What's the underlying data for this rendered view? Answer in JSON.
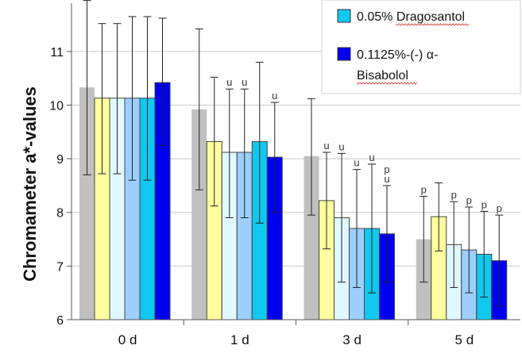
{
  "chart_data": {
    "type": "bar",
    "ylabel": "Chromameter a*-values",
    "ylim": [
      6,
      11.9
    ],
    "yticks": [
      "6",
      "7",
      "8",
      "9",
      "10",
      "11"
    ],
    "categories": [
      "0 d",
      "1 d",
      "3 d",
      "5 d"
    ],
    "series": [
      {
        "color": "#c0c0c0",
        "values": [
          10.33,
          9.92,
          9.05,
          7.5
        ],
        "err_upper": [
          11.95,
          11.42,
          10.12,
          8.3
        ],
        "err_lower": [
          8.7,
          8.42,
          7.95,
          6.7
        ],
        "annotations": [
          "",
          "",
          "",
          "p"
        ]
      },
      {
        "color": "#ffffa0",
        "values": [
          10.13,
          9.32,
          8.22,
          7.92
        ],
        "err_upper": [
          11.52,
          10.52,
          9.12,
          8.55
        ],
        "err_lower": [
          8.72,
          8.12,
          7.32,
          7.28
        ],
        "annotations": [
          "",
          "",
          "u",
          ""
        ]
      },
      {
        "color": "#e0f8ff",
        "values": [
          10.13,
          9.12,
          7.9,
          7.4
        ],
        "err_upper": [
          11.52,
          10.3,
          9.1,
          8.2
        ],
        "err_lower": [
          8.72,
          7.9,
          6.7,
          6.6
        ],
        "annotations": [
          "",
          "u",
          "u",
          "p"
        ]
      },
      {
        "color": "#9ccfff",
        "values": [
          10.13,
          9.12,
          7.7,
          7.3
        ],
        "err_upper": [
          11.65,
          10.3,
          8.8,
          8.1
        ],
        "err_lower": [
          8.6,
          7.9,
          6.6,
          6.5
        ],
        "annotations": [
          "",
          "u",
          "u",
          "p"
        ]
      },
      {
        "color": "#11c8ee",
        "values": [
          10.13,
          9.32,
          7.7,
          7.22
        ],
        "err_upper": [
          11.65,
          10.8,
          8.9,
          8.02
        ],
        "err_lower": [
          8.6,
          7.8,
          6.5,
          6.42
        ],
        "annotations": [
          "",
          "",
          "u",
          "p"
        ]
      },
      {
        "color": "#0000ee",
        "values": [
          10.42,
          9.03,
          7.6,
          7.1
        ],
        "err_upper": [
          11.62,
          10.05,
          8.5,
          7.95
        ],
        "err_lower": [
          9.25,
          8.0,
          6.7,
          6.25
        ],
        "annotations": [
          "",
          "u",
          "p\nu",
          "p"
        ]
      }
    ],
    "legend": {
      "position": "top-right",
      "entries": [
        {
          "label": "0.05% Dragosantol",
          "color": "#11c8ee"
        },
        {
          "label": "0.1125%-(-) α-\nBisabolol",
          "color": "#0000ee"
        }
      ]
    },
    "grid": true
  }
}
